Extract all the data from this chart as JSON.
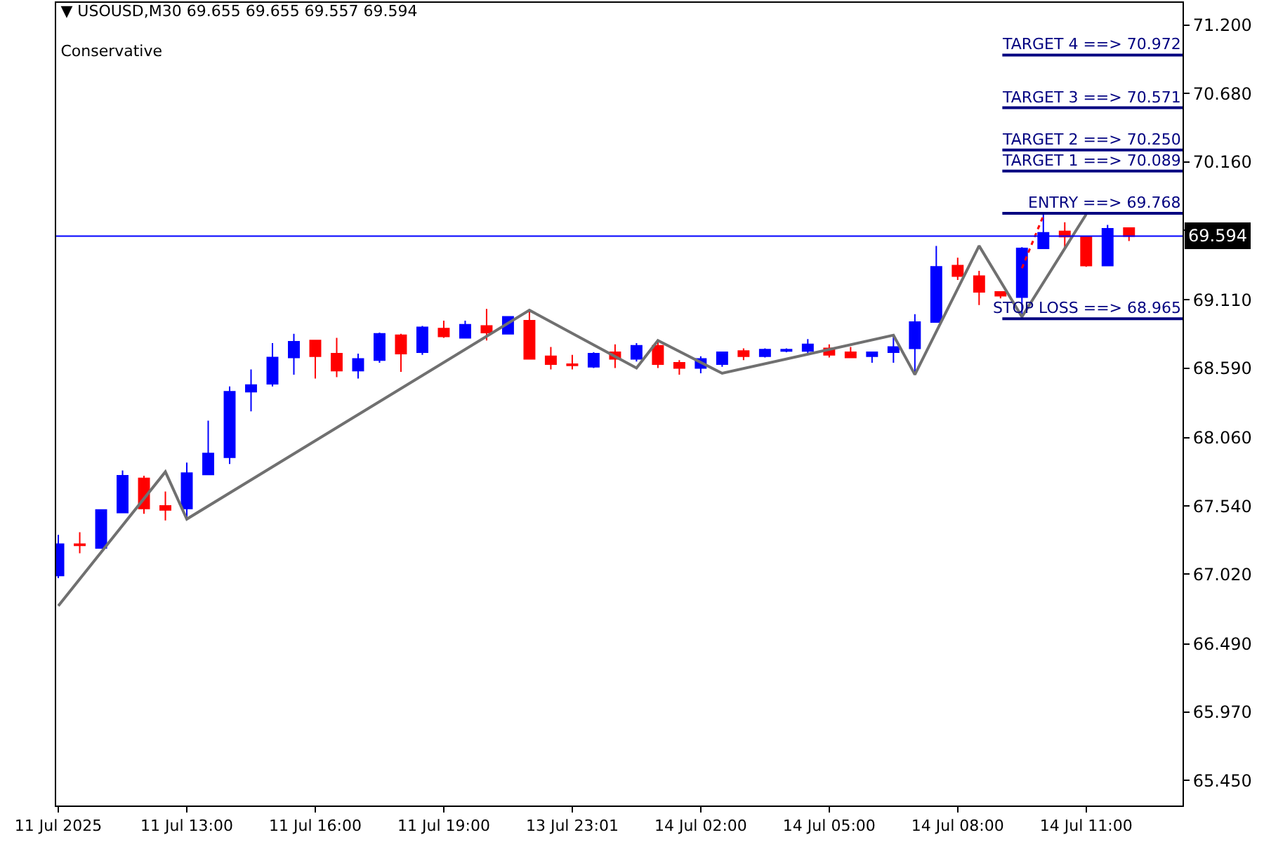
{
  "chart_data": {
    "type": "candlestick",
    "title": "▼ USOUSD,M30 69.655 69.655 69.557 69.594",
    "subtitle": "Conservative",
    "categories": [
      "11 Jul 2025",
      null,
      null,
      null,
      null,
      null,
      "11 Jul 13:00",
      null,
      null,
      null,
      null,
      null,
      "11 Jul 16:00",
      null,
      null,
      null,
      null,
      null,
      "11 Jul 19:00",
      null,
      null,
      null,
      null,
      null,
      "13 Jul 23:01",
      null,
      null,
      null,
      null,
      null,
      "14 Jul 02:00",
      null,
      null,
      null,
      null,
      null,
      "14 Jul 05:00",
      null,
      null,
      null,
      null,
      null,
      "14 Jul 08:00",
      null,
      null,
      null,
      null,
      null,
      "14 Jul 11:00",
      null,
      null
    ],
    "ylim": [
      65.26,
      71.37
    ],
    "yticks": [
      {
        "value": 65.45,
        "label": "65.450"
      },
      {
        "value": 65.97,
        "label": "65.970"
      },
      {
        "value": 66.49,
        "label": "66.490"
      },
      {
        "value": 67.02,
        "label": "67.020"
      },
      {
        "value": 67.54,
        "label": "67.540"
      },
      {
        "value": 68.06,
        "label": "68.060"
      },
      {
        "value": 68.59,
        "label": "68.590"
      },
      {
        "value": 69.11,
        "label": "69.110"
      },
      {
        "value": 69.64,
        "label": null
      },
      {
        "value": 70.16,
        "label": "70.160"
      },
      {
        "value": 70.68,
        "label": "70.680"
      },
      {
        "value": 71.2,
        "label": "71.200"
      }
    ],
    "series": [
      {
        "ohlc": [
          [
            67.01,
            67.32,
            66.99,
            67.25
          ],
          [
            67.25,
            67.34,
            67.18,
            67.24
          ],
          [
            67.22,
            67.51,
            67.22,
            67.51
          ],
          [
            67.49,
            67.81,
            67.49,
            67.77
          ],
          [
            67.75,
            67.77,
            67.48,
            67.52
          ],
          [
            67.54,
            67.65,
            67.43,
            67.51
          ],
          [
            67.52,
            67.87,
            67.45,
            67.79
          ],
          [
            67.78,
            68.19,
            67.78,
            67.94
          ],
          [
            67.91,
            68.45,
            67.86,
            68.41
          ],
          [
            68.41,
            68.58,
            68.26,
            68.46
          ],
          [
            68.47,
            68.78,
            68.45,
            68.67
          ],
          [
            68.67,
            68.85,
            68.54,
            68.79
          ],
          [
            68.8,
            68.8,
            68.51,
            68.68
          ],
          [
            68.7,
            68.82,
            68.52,
            68.57
          ],
          [
            68.57,
            68.7,
            68.51,
            68.66
          ],
          [
            68.65,
            68.86,
            68.63,
            68.85
          ],
          [
            68.84,
            68.85,
            68.56,
            68.7
          ],
          [
            68.71,
            68.91,
            68.69,
            68.9
          ],
          [
            68.89,
            68.95,
            68.82,
            68.83
          ],
          [
            68.82,
            68.95,
            68.82,
            68.92
          ],
          [
            68.91,
            69.04,
            68.8,
            68.86
          ],
          [
            68.85,
            68.98,
            68.85,
            68.98
          ],
          [
            68.95,
            69.02,
            68.66,
            68.66
          ],
          [
            68.68,
            68.75,
            68.58,
            68.62
          ],
          [
            68.62,
            68.69,
            68.58,
            68.61
          ],
          [
            68.6,
            68.71,
            68.59,
            68.7
          ],
          [
            68.71,
            68.77,
            68.59,
            68.66
          ],
          [
            68.66,
            68.78,
            68.64,
            68.76
          ],
          [
            68.76,
            68.79,
            68.59,
            68.62
          ],
          [
            68.63,
            68.65,
            68.54,
            68.59
          ],
          [
            68.59,
            68.68,
            68.55,
            68.66
          ],
          [
            68.62,
            68.71,
            68.6,
            68.71
          ],
          [
            68.72,
            68.74,
            68.65,
            68.68
          ],
          [
            68.68,
            68.74,
            68.67,
            68.73
          ],
          [
            68.72,
            68.74,
            68.71,
            68.73
          ],
          [
            68.72,
            68.81,
            68.7,
            68.77
          ],
          [
            68.74,
            68.77,
            68.67,
            68.69
          ],
          [
            68.71,
            68.75,
            68.67,
            68.67
          ],
          [
            68.68,
            68.71,
            68.63,
            68.71
          ],
          [
            68.71,
            68.84,
            68.63,
            68.75
          ],
          [
            68.74,
            69.0,
            68.54,
            68.94
          ],
          [
            68.94,
            69.52,
            68.94,
            69.36
          ],
          [
            69.37,
            69.43,
            69.26,
            69.29
          ],
          [
            69.29,
            69.33,
            69.07,
            69.17
          ],
          [
            69.17,
            69.17,
            69.12,
            69.14
          ],
          [
            69.13,
            69.51,
            68.98,
            69.5
          ],
          [
            69.5,
            69.76,
            69.5,
            69.62
          ],
          [
            69.63,
            69.7,
            69.5,
            69.59
          ],
          [
            69.59,
            69.59,
            69.36,
            69.37
          ],
          [
            69.37,
            69.68,
            69.37,
            69.65
          ],
          [
            69.655,
            69.655,
            69.557,
            69.594
          ]
        ],
        "colors": [
          "#0000ff",
          "#ff0000",
          "#0000ff",
          "#0000ff",
          "#ff0000",
          "#ff0000",
          "#0000ff",
          "#0000ff",
          "#0000ff",
          "#0000ff",
          "#0000ff",
          "#0000ff",
          "#ff0000",
          "#ff0000",
          "#0000ff",
          "#0000ff",
          "#ff0000",
          "#0000ff",
          "#ff0000",
          "#0000ff",
          "#ff0000",
          "#0000ff",
          "#ff0000",
          "#ff0000",
          "#ff0000",
          "#0000ff",
          "#ff0000",
          "#0000ff",
          "#ff0000",
          "#ff0000",
          "#0000ff",
          "#0000ff",
          "#ff0000",
          "#0000ff",
          "#0000ff",
          "#0000ff",
          "#ff0000",
          "#ff0000",
          "#0000ff",
          "#0000ff",
          "#0000ff",
          "#0000ff",
          "#ff0000",
          "#ff0000",
          "#ff0000",
          "#0000ff",
          "#0000ff",
          "#ff0000",
          "#ff0000",
          "#0000ff",
          "#ff0000"
        ]
      },
      {
        "type": "line",
        "color": "#707070",
        "values": [
          66.78,
          null,
          null,
          null,
          null,
          67.8,
          67.44,
          null,
          null,
          null,
          null,
          null,
          null,
          null,
          null,
          null,
          null,
          null,
          null,
          null,
          null,
          null,
          69.03,
          null,
          null,
          null,
          null,
          68.59,
          68.8,
          null,
          null,
          68.55,
          null,
          null,
          null,
          null,
          null,
          null,
          null,
          68.84,
          68.54,
          null,
          null,
          69.52,
          null,
          68.98,
          null,
          null,
          69.76,
          null,
          null
        ]
      },
      {
        "type": "line",
        "color": "#ff0000",
        "line_style": "dotted",
        "values": [
          null,
          null,
          null,
          null,
          null,
          null,
          null,
          null,
          null,
          null,
          null,
          null,
          null,
          null,
          null,
          null,
          null,
          null,
          null,
          null,
          null,
          null,
          null,
          null,
          null,
          null,
          null,
          null,
          null,
          null,
          null,
          null,
          null,
          null,
          null,
          null,
          null,
          null,
          null,
          null,
          null,
          null,
          null,
          null,
          null,
          69.35,
          69.75,
          null,
          null,
          null,
          null
        ]
      }
    ],
    "ref_lines": [
      {
        "axis": "y",
        "value": 70.972,
        "label": "TARGET 4 ==> 70.972",
        "color": "#000080"
      },
      {
        "axis": "y",
        "value": 70.571,
        "label": "TARGET 3 ==> 70.571",
        "color": "#000080"
      },
      {
        "axis": "y",
        "value": 70.25,
        "label": "TARGET 2 ==> 70.250",
        "color": "#000080"
      },
      {
        "axis": "y",
        "value": 70.089,
        "label": "TARGET 1 ==> 70.089",
        "color": "#000080"
      },
      {
        "axis": "y",
        "value": 69.768,
        "label": "ENTRY ==> 69.768",
        "color": "#000080"
      },
      {
        "axis": "y",
        "value": 68.965,
        "label": "STOP LOSS ==> 68.965",
        "color": "#000080"
      },
      {
        "axis": "y",
        "value": 69.594,
        "label": "69.594",
        "color": "#0000ff"
      }
    ]
  }
}
